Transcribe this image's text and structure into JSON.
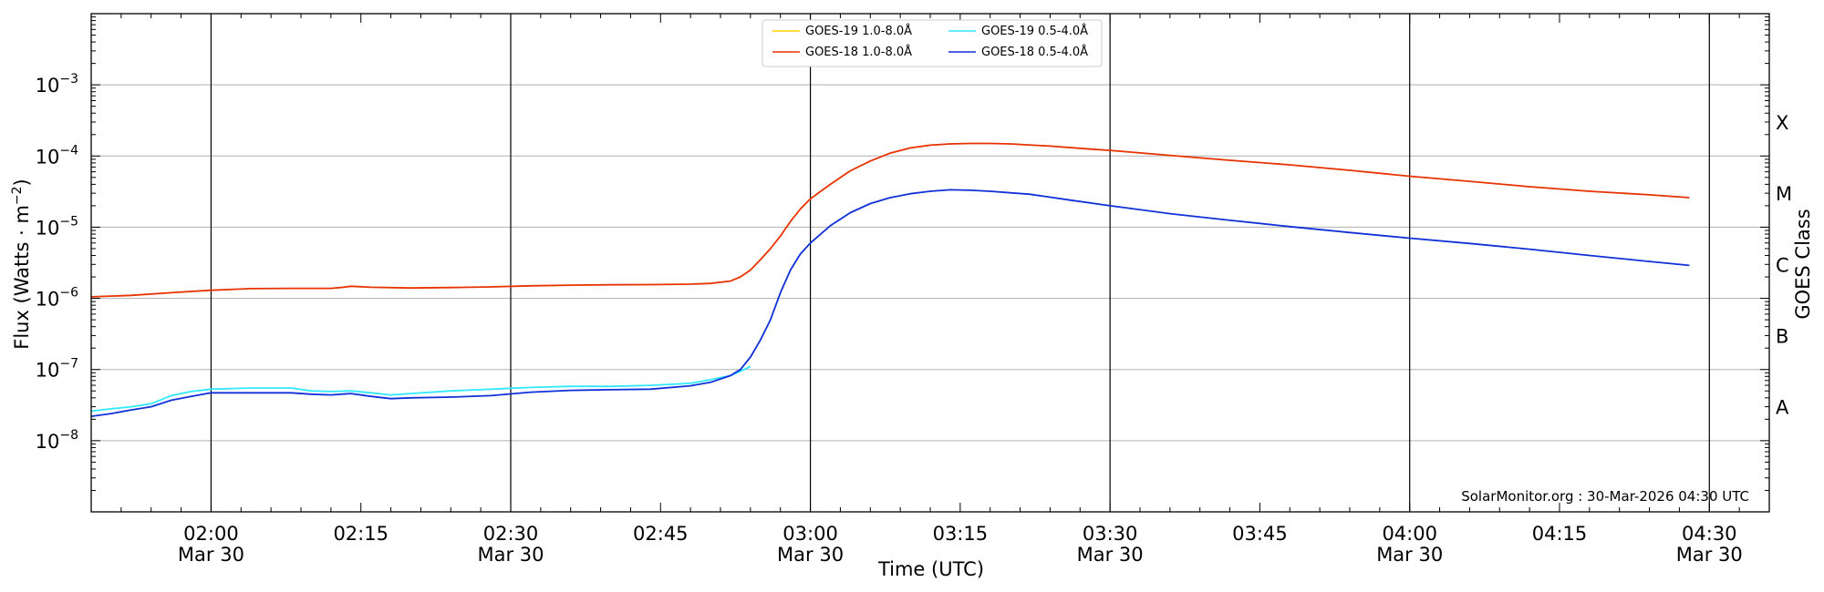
{
  "chart_data": {
    "type": "line",
    "title": "",
    "xlabel": "Time (UTC)",
    "ylabel": "Flux (Watts · m",
    "ylabel_superscript": "−2",
    "ylabel_close": ")",
    "y2label": "GOES Class",
    "yscale": "log",
    "xlim": [
      "01:48",
      "04:36"
    ],
    "ylim": [
      1e-09,
      0.01
    ],
    "grid": "horizontal at each decade",
    "legend_position": "top-center",
    "x_major_ticks": [
      {
        "time": "02:00",
        "label": "02:00",
        "date": "Mar 30"
      },
      {
        "time": "02:15",
        "label": "02:15",
        "date": ""
      },
      {
        "time": "02:30",
        "label": "02:30",
        "date": "Mar 30"
      },
      {
        "time": "02:45",
        "label": "02:45",
        "date": ""
      },
      {
        "time": "03:00",
        "label": "03:00",
        "date": "Mar 30"
      },
      {
        "time": "03:15",
        "label": "03:15",
        "date": ""
      },
      {
        "time": "03:30",
        "label": "03:30",
        "date": "Mar 30"
      },
      {
        "time": "03:45",
        "label": "03:45",
        "date": ""
      },
      {
        "time": "04:00",
        "label": "04:00",
        "date": "Mar 30"
      },
      {
        "time": "04:15",
        "label": "04:15",
        "date": ""
      },
      {
        "time": "04:30",
        "label": "04:30",
        "date": "Mar 30"
      }
    ],
    "vertical_lines": [
      "02:00",
      "02:30",
      "03:00",
      "03:30",
      "04:00",
      "04:30"
    ],
    "y_ticks": [
      {
        "value": 1e-08,
        "base": "10",
        "exp": "−8"
      },
      {
        "value": 1e-07,
        "base": "10",
        "exp": "−7"
      },
      {
        "value": 1e-06,
        "base": "10",
        "exp": "−6"
      },
      {
        "value": 1e-05,
        "base": "10",
        "exp": "−5"
      },
      {
        "value": 0.0001,
        "base": "10",
        "exp": "−4"
      },
      {
        "value": 0.001,
        "base": "10",
        "exp": "−3"
      }
    ],
    "goes_classes": [
      {
        "label": "A",
        "value": 3e-08
      },
      {
        "label": "B",
        "value": 3e-07
      },
      {
        "label": "C",
        "value": 3e-06
      },
      {
        "label": "M",
        "value": 3e-05
      },
      {
        "label": "X",
        "value": 0.0003
      }
    ],
    "legend": [
      {
        "name": "GOES-19 1.0-8.0Å",
        "color": "#ffd200"
      },
      {
        "name": "GOES-19 0.5-4.0Å",
        "color": "#30e8ff"
      },
      {
        "name": "GOES-18 1.0-8.0Å",
        "color": "#e83200"
      },
      {
        "name": "GOES-18 0.5-4.0Å",
        "color": "#1030d8"
      }
    ],
    "series": [
      {
        "name": "GOES-18 1.0-8.0Å",
        "color": "#e83200",
        "x": [
          "01:48",
          "01:52",
          "01:56",
          "02:00",
          "02:04",
          "02:08",
          "02:12",
          "02:13",
          "02:14",
          "02:16",
          "02:20",
          "02:24",
          "02:28",
          "02:32",
          "02:36",
          "02:40",
          "02:44",
          "02:48",
          "02:50",
          "02:52",
          "02:53",
          "02:54",
          "02:55",
          "02:56",
          "02:57",
          "02:58",
          "02:59",
          "03:00",
          "03:02",
          "03:04",
          "03:06",
          "03:08",
          "03:10",
          "03:12",
          "03:14",
          "03:16",
          "03:18",
          "03:20",
          "03:24",
          "03:28",
          "03:30",
          "03:36",
          "03:42",
          "03:48",
          "03:54",
          "04:00",
          "04:06",
          "04:12",
          "04:18",
          "04:24",
          "04:28"
        ],
        "values": [
          1.05e-06,
          1.1e-06,
          1.2e-06,
          1.3e-06,
          1.37e-06,
          1.38e-06,
          1.38e-06,
          1.42e-06,
          1.48e-06,
          1.43e-06,
          1.4e-06,
          1.42e-06,
          1.45e-06,
          1.5e-06,
          1.53e-06,
          1.55e-06,
          1.56e-06,
          1.58e-06,
          1.62e-06,
          1.75e-06,
          2e-06,
          2.5e-06,
          3.5e-06,
          5e-06,
          7.5e-06,
          1.2e-05,
          1.8e-05,
          2.5e-05,
          4e-05,
          6.2e-05,
          8.5e-05,
          0.00011,
          0.00013,
          0.000142,
          0.000148,
          0.00015,
          0.00015,
          0.000148,
          0.000138,
          0.000125,
          0.00012,
          0.000102,
          8.7e-05,
          7.5e-05,
          6.3e-05,
          5.2e-05,
          4.4e-05,
          3.7e-05,
          3.2e-05,
          2.85e-05,
          2.6e-05
        ]
      },
      {
        "name": "GOES-19 0.5-4.0Å",
        "color": "#30e8ff",
        "x": [
          "01:48",
          "01:50",
          "01:52",
          "01:54",
          "01:56",
          "01:58",
          "02:00",
          "02:04",
          "02:08",
          "02:10",
          "02:12",
          "02:14",
          "02:16",
          "02:18",
          "02:20",
          "02:24",
          "02:28",
          "02:32",
          "02:36",
          "02:40",
          "02:44",
          "02:48",
          "02:50",
          "02:52",
          "02:53",
          "02:54"
        ],
        "values": [
          2.6e-08,
          2.8e-08,
          3e-08,
          3.3e-08,
          4.3e-08,
          4.9e-08,
          5.3e-08,
          5.5e-08,
          5.5e-08,
          5e-08,
          4.9e-08,
          5e-08,
          4.7e-08,
          4.4e-08,
          4.6e-08,
          5e-08,
          5.3e-08,
          5.6e-08,
          5.8e-08,
          5.8e-08,
          6e-08,
          6.4e-08,
          7.2e-08,
          8.2e-08,
          9.5e-08,
          1.1e-07
        ]
      },
      {
        "name": "GOES-18 0.5-4.0Å",
        "color": "#1030d8",
        "x": [
          "01:48",
          "01:50",
          "01:52",
          "01:54",
          "01:56",
          "01:58",
          "02:00",
          "02:04",
          "02:08",
          "02:10",
          "02:12",
          "02:14",
          "02:16",
          "02:18",
          "02:20",
          "02:24",
          "02:28",
          "02:32",
          "02:36",
          "02:40",
          "02:44",
          "02:48",
          "02:50",
          "02:52",
          "02:53",
          "02:54",
          "02:55",
          "02:56",
          "02:57",
          "02:58",
          "02:59",
          "03:00",
          "03:02",
          "03:04",
          "03:06",
          "03:08",
          "03:10",
          "03:12",
          "03:14",
          "03:16",
          "03:18",
          "03:22",
          "03:26",
          "03:30",
          "03:36",
          "03:42",
          "03:48",
          "03:54",
          "04:00",
          "04:06",
          "04:12",
          "04:18",
          "04:24",
          "04:28"
        ],
        "values": [
          2.2e-08,
          2.4e-08,
          2.7e-08,
          3e-08,
          3.7e-08,
          4.2e-08,
          4.7e-08,
          4.7e-08,
          4.7e-08,
          4.5e-08,
          4.4e-08,
          4.6e-08,
          4.2e-08,
          3.9e-08,
          4e-08,
          4.1e-08,
          4.3e-08,
          4.8e-08,
          5.1e-08,
          5.2e-08,
          5.3e-08,
          5.9e-08,
          6.6e-08,
          8.2e-08,
          1e-07,
          1.5e-07,
          2.6e-07,
          5e-07,
          1.2e-06,
          2.5e-06,
          4.2e-06,
          6e-06,
          1.05e-05,
          1.6e-05,
          2.15e-05,
          2.6e-05,
          2.95e-05,
          3.2e-05,
          3.35e-05,
          3.3e-05,
          3.2e-05,
          2.9e-05,
          2.4e-05,
          2e-05,
          1.55e-05,
          1.25e-05,
          1.02e-05,
          8.4e-06,
          7e-06,
          5.9e-06,
          4.9e-06,
          4e-06,
          3.3e-06,
          2.9e-06
        ]
      }
    ]
  },
  "credit": "SolarMonitor.org : 30-Mar-2026 04:30 UTC"
}
